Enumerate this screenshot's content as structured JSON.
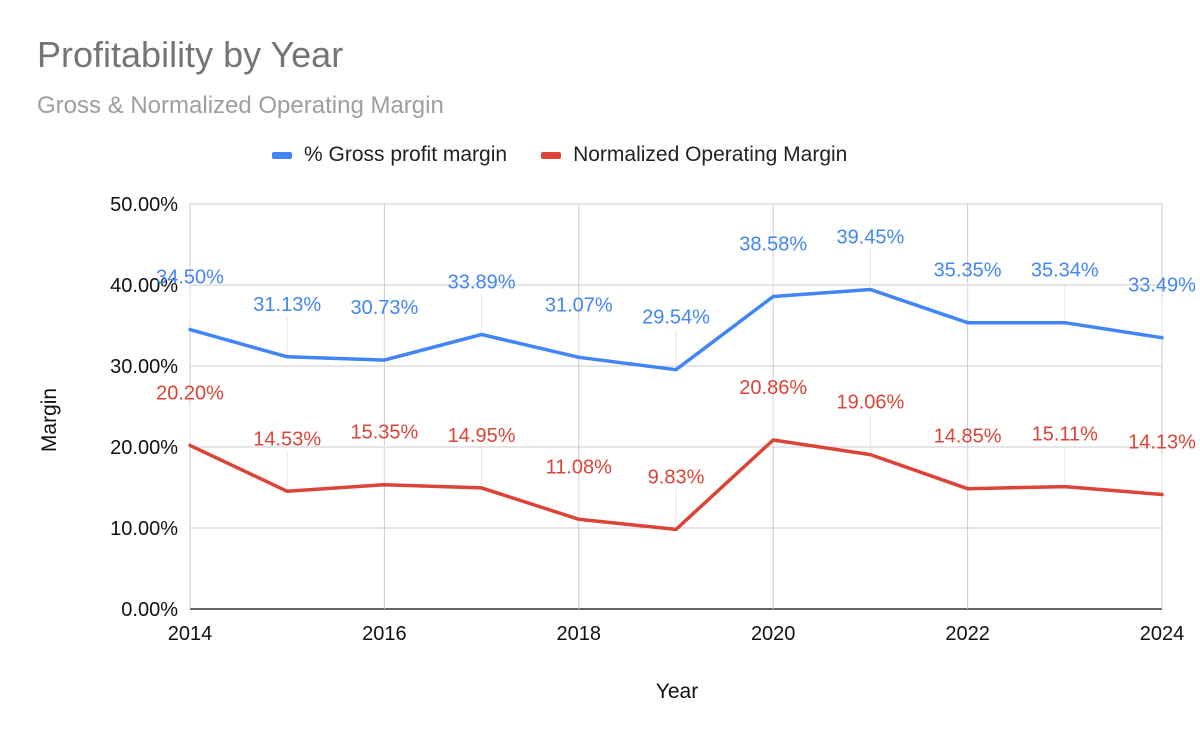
{
  "chart_data": {
    "type": "line",
    "title": "Profitability by Year",
    "subtitle": "Gross & Normalized Operating Margin",
    "xlabel": "Year",
    "ylabel": "Margin",
    "x": [
      2014,
      2015,
      2016,
      2017,
      2018,
      2019,
      2020,
      2021,
      2022,
      2023,
      2024
    ],
    "x_ticks": [
      "2014",
      "2016",
      "2018",
      "2020",
      "2022",
      "2024"
    ],
    "x_tick_values": [
      2014,
      2016,
      2018,
      2020,
      2022,
      2024
    ],
    "xlim": [
      2014,
      2024
    ],
    "ylim": [
      0,
      50
    ],
    "y_ticks": [
      "0.00%",
      "10.00%",
      "20.00%",
      "30.00%",
      "40.00%",
      "50.00%"
    ],
    "y_tick_values": [
      0,
      10,
      20,
      30,
      40,
      50
    ],
    "grid": true,
    "legend_position": "top",
    "series": [
      {
        "name": "% Gross profit margin",
        "color": "#4285f4",
        "values": [
          34.5,
          31.13,
          30.73,
          33.89,
          31.07,
          29.54,
          38.58,
          39.45,
          35.35,
          35.34,
          33.49
        ],
        "labels": [
          "34.50%",
          "31.13%",
          "30.73%",
          "33.89%",
          "31.07%",
          "29.54%",
          "38.58%",
          "39.45%",
          "35.35%",
          "35.34%",
          "33.49%"
        ]
      },
      {
        "name": "Normalized Operating Margin",
        "color": "#db4437",
        "values": [
          20.2,
          14.53,
          15.35,
          14.95,
          11.08,
          9.83,
          20.86,
          19.06,
          14.85,
          15.11,
          14.13
        ],
        "labels": [
          "20.20%",
          "14.53%",
          "15.35%",
          "14.95%",
          "11.08%",
          "9.83%",
          "20.86%",
          "19.06%",
          "14.85%",
          "15.11%",
          "14.13%"
        ]
      }
    ]
  }
}
